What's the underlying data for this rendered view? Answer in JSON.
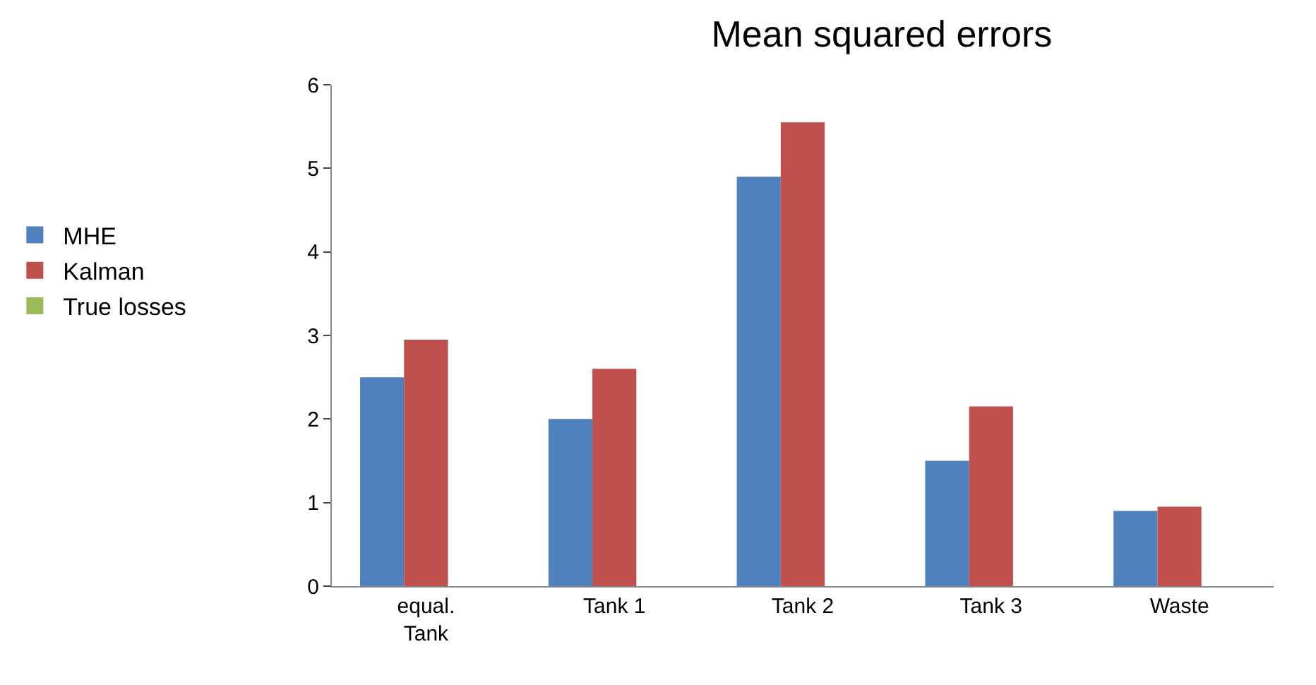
{
  "chart_data": {
    "type": "bar",
    "title": "Mean squared errors",
    "categories": [
      "equal. Tank",
      "Tank 1",
      "Tank 2",
      "Tank 3",
      "Waste"
    ],
    "series": [
      {
        "name": "MHE",
        "color": "#4f81bd",
        "values": [
          2.5,
          2.0,
          4.9,
          1.5,
          0.9
        ]
      },
      {
        "name": "Kalman",
        "color": "#c0504d",
        "values": [
          2.95,
          2.6,
          5.55,
          2.15,
          0.95
        ]
      },
      {
        "name": "True losses",
        "color": "#9bbb59",
        "values": [
          null,
          null,
          null,
          null,
          null
        ]
      }
    ],
    "ylim": [
      0,
      6
    ],
    "yticks": [
      0,
      1,
      2,
      3,
      4,
      5,
      6
    ],
    "legend": "left"
  }
}
